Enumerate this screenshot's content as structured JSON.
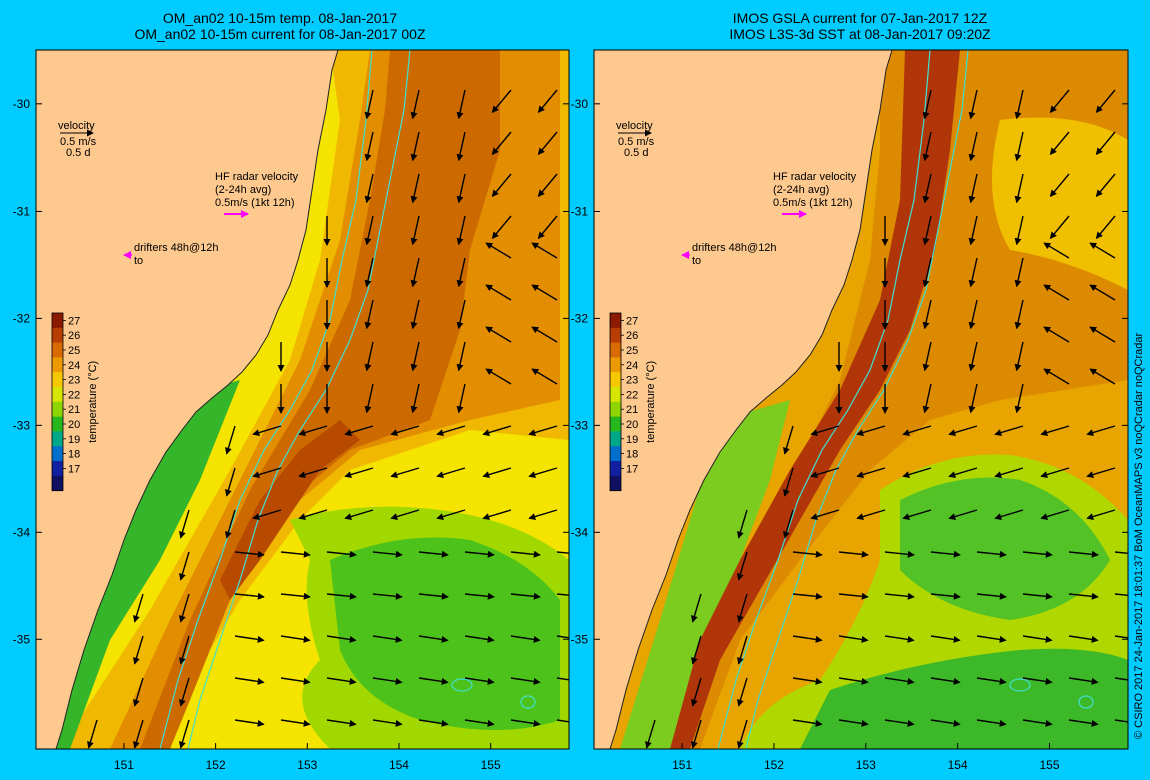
{
  "panels": [
    {
      "title_line1": "OM_an02 10-15m temp. 08-Jan-2017",
      "title_line2": "OM_an02 10-15m current for 08-Jan-2017 00Z",
      "velocity_legend": {
        "label": "velocity",
        "line1": "0.5 m/s",
        "line2": "0.5 d"
      },
      "hf_radar_legend": {
        "line1": "HF radar velocity",
        "line2": "(2-24h avg)",
        "line3": "0.5m/s (1kt 12h)"
      },
      "drifters_legend": {
        "line1": "drifters 48h@12h",
        "line2": "to"
      }
    },
    {
      "title_line1": "IMOS GSLA current for 07-Jan-2017 12Z",
      "title_line2": "IMOS L3S-3d SST at 08-Jan-2017 09:20Z",
      "velocity_legend": {
        "label": "velocity",
        "line1": "0.5 m/s",
        "line2": "0.5 d"
      },
      "hf_radar_legend": {
        "line1": "HF radar velocity",
        "line2": "(2-24h avg)",
        "line3": "0.5m/s (1kt 12h)"
      },
      "drifters_legend": {
        "line1": "drifters 48h@12h",
        "line2": "to"
      }
    }
  ],
  "axes": {
    "x_ticks": [
      "151",
      "152",
      "153",
      "154",
      "155"
    ],
    "y_ticks": [
      "-30",
      "-31",
      "-32",
      "-33",
      "-34",
      "-35"
    ]
  },
  "colorbar": {
    "label": "temperature (°C)",
    "ticks": [
      "27",
      "26",
      "25",
      "24",
      "23",
      "22",
      "21",
      "20",
      "19",
      "18",
      "17"
    ],
    "colors": [
      "#8b1a00",
      "#b83d00",
      "#d96a00",
      "#ec9a00",
      "#f5c800",
      "#d6e600",
      "#8fd600",
      "#27b81e",
      "#00a88a",
      "#0070cc",
      "#1020a0",
      "#101060"
    ]
  },
  "credit": "© CSIRO 2017   24-Jan-2017 18:01:37 BoM OceanMAPS v3 noQCradar noQCradar",
  "colors": {
    "background": "#00ccff",
    "land": "#fdc98f",
    "isobath": "#40e0d0",
    "hf_arrow": "#ff00ff"
  }
}
